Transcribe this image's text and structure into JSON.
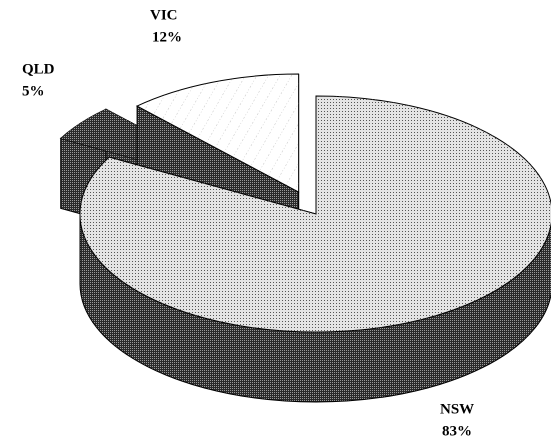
{
  "chart_data": {
    "type": "pie",
    "categories": [
      "NSW",
      "QLD",
      "VIC"
    ],
    "values": [
      83,
      5,
      12
    ],
    "value_labels": [
      "83%",
      "5%",
      "12%"
    ],
    "colors": [
      "#e4e4e4",
      "#3a3a3a",
      "#ffffff"
    ]
  }
}
